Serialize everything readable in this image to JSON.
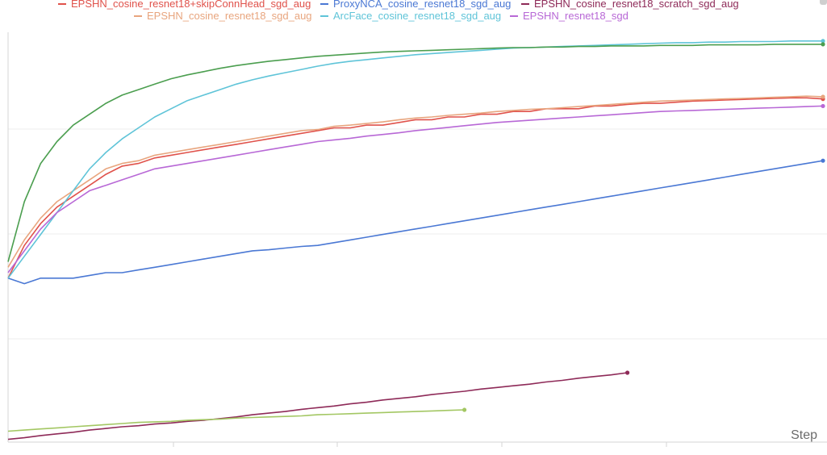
{
  "chart_data": {
    "type": "line",
    "x_axis_label": "Step",
    "grid": true,
    "legend_position": "top",
    "series": [
      {
        "name": "EPSHN_cosine_resnet18+skipConnHead_sgd_aug",
        "color": "#e0524b",
        "x": [
          0,
          5,
          10,
          15,
          20,
          25,
          30,
          35,
          40,
          45,
          50,
          55,
          60,
          65,
          70,
          75,
          80,
          85,
          90,
          95,
          100,
          105,
          110,
          115,
          120,
          125,
          130,
          135,
          140,
          145,
          150,
          155,
          160,
          165,
          170,
          175,
          180,
          185,
          190,
          195,
          200,
          205,
          210,
          215,
          220,
          225,
          230,
          235,
          240,
          245,
          250
        ],
        "y": [
          0.3,
          0.36,
          0.4,
          0.43,
          0.45,
          0.47,
          0.49,
          0.505,
          0.51,
          0.52,
          0.525,
          0.53,
          0.535,
          0.54,
          0.545,
          0.55,
          0.555,
          0.56,
          0.565,
          0.57,
          0.575,
          0.575,
          0.58,
          0.58,
          0.585,
          0.59,
          0.59,
          0.595,
          0.595,
          0.6,
          0.6,
          0.605,
          0.605,
          0.61,
          0.61,
          0.61,
          0.615,
          0.615,
          0.618,
          0.62,
          0.62,
          0.622,
          0.624,
          0.625,
          0.626,
          0.627,
          0.628,
          0.629,
          0.63,
          0.63,
          0.628
        ]
      },
      {
        "name": "ProxyNCA_cosine_resnet18_sgd_aug",
        "color": "#4a78d4",
        "x": [
          0,
          5,
          10,
          15,
          20,
          25,
          30,
          35,
          40,
          45,
          50,
          55,
          60,
          65,
          70,
          75,
          80,
          85,
          90,
          95,
          100,
          105,
          110,
          115,
          120,
          125,
          130,
          135,
          140,
          145,
          150,
          155,
          160,
          165,
          170,
          175,
          180,
          185,
          190,
          195,
          200,
          205,
          210,
          215,
          220,
          225,
          230,
          235,
          240,
          245,
          250
        ],
        "y": [
          0.3,
          0.29,
          0.3,
          0.3,
          0.3,
          0.305,
          0.31,
          0.31,
          0.315,
          0.32,
          0.325,
          0.33,
          0.335,
          0.34,
          0.345,
          0.35,
          0.352,
          0.355,
          0.358,
          0.36,
          0.365,
          0.37,
          0.375,
          0.38,
          0.385,
          0.39,
          0.395,
          0.4,
          0.405,
          0.41,
          0.415,
          0.42,
          0.425,
          0.43,
          0.435,
          0.44,
          0.445,
          0.45,
          0.455,
          0.46,
          0.465,
          0.47,
          0.475,
          0.48,
          0.485,
          0.49,
          0.495,
          0.5,
          0.505,
          0.51,
          0.515
        ]
      },
      {
        "name": "EPSHN_cosine_resnet18_scratch_sgd_aug",
        "color": "#8e2a58",
        "x": [
          0,
          5,
          10,
          15,
          20,
          25,
          30,
          35,
          40,
          45,
          50,
          55,
          60,
          65,
          70,
          75,
          80,
          85,
          90,
          95,
          100,
          105,
          110,
          115,
          120,
          125,
          130,
          135,
          140,
          145,
          150,
          155,
          160,
          165,
          170,
          175,
          180,
          185,
          190
        ],
        "y": [
          0.005,
          0.008,
          0.012,
          0.015,
          0.018,
          0.022,
          0.025,
          0.028,
          0.03,
          0.033,
          0.035,
          0.038,
          0.04,
          0.043,
          0.046,
          0.05,
          0.053,
          0.056,
          0.06,
          0.063,
          0.066,
          0.07,
          0.073,
          0.077,
          0.08,
          0.083,
          0.087,
          0.09,
          0.093,
          0.097,
          0.1,
          0.103,
          0.106,
          0.11,
          0.113,
          0.117,
          0.12,
          0.123,
          0.127
        ]
      },
      {
        "name": "EPSHN_cosine_resnet18_sgd_aug",
        "color": "#e8a57e",
        "x": [
          0,
          5,
          10,
          15,
          20,
          25,
          30,
          35,
          40,
          45,
          50,
          55,
          60,
          65,
          70,
          75,
          80,
          85,
          90,
          95,
          100,
          105,
          110,
          115,
          120,
          125,
          130,
          135,
          140,
          145,
          150,
          155,
          160,
          165,
          170,
          175,
          180,
          185,
          190,
          195,
          200,
          205,
          210,
          215,
          220,
          225,
          230,
          235,
          240,
          245,
          250
        ],
        "y": [
          0.32,
          0.37,
          0.41,
          0.44,
          0.46,
          0.48,
          0.5,
          0.51,
          0.515,
          0.525,
          0.53,
          0.535,
          0.54,
          0.545,
          0.55,
          0.555,
          0.56,
          0.565,
          0.57,
          0.572,
          0.578,
          0.58,
          0.583,
          0.586,
          0.59,
          0.593,
          0.595,
          0.598,
          0.6,
          0.602,
          0.605,
          0.607,
          0.609,
          0.61,
          0.612,
          0.614,
          0.616,
          0.618,
          0.62,
          0.622,
          0.624,
          0.625,
          0.626,
          0.627,
          0.628,
          0.629,
          0.63,
          0.631,
          0.632,
          0.633,
          0.632
        ]
      },
      {
        "name": "ArcFace_cosine_resnet18_sgd_aug",
        "color": "#5fc4d8",
        "x": [
          0,
          5,
          10,
          15,
          20,
          25,
          30,
          35,
          40,
          45,
          50,
          55,
          60,
          65,
          70,
          75,
          80,
          85,
          90,
          95,
          100,
          105,
          110,
          115,
          120,
          125,
          130,
          135,
          140,
          145,
          150,
          155,
          160,
          165,
          170,
          175,
          180,
          185,
          190,
          195,
          200,
          205,
          210,
          215,
          220,
          225,
          230,
          235,
          240,
          245,
          250
        ],
        "y": [
          0.3,
          0.34,
          0.38,
          0.42,
          0.46,
          0.5,
          0.53,
          0.555,
          0.575,
          0.595,
          0.61,
          0.625,
          0.635,
          0.645,
          0.655,
          0.663,
          0.67,
          0.676,
          0.682,
          0.688,
          0.693,
          0.697,
          0.7,
          0.703,
          0.706,
          0.709,
          0.711,
          0.713,
          0.715,
          0.717,
          0.719,
          0.721,
          0.722,
          0.723,
          0.724,
          0.725,
          0.726,
          0.727,
          0.728,
          0.729,
          0.73,
          0.731,
          0.731,
          0.732,
          0.732,
          0.733,
          0.733,
          0.733,
          0.734,
          0.734,
          0.734
        ]
      },
      {
        "name": "EPSHN_resnet18_sgd",
        "color": "#b868d6",
        "x": [
          0,
          5,
          10,
          15,
          20,
          25,
          30,
          35,
          40,
          45,
          50,
          55,
          60,
          65,
          70,
          75,
          80,
          85,
          90,
          95,
          100,
          105,
          110,
          115,
          120,
          125,
          130,
          135,
          140,
          145,
          150,
          155,
          160,
          165,
          170,
          175,
          180,
          185,
          190,
          195,
          200,
          205,
          210,
          215,
          220,
          225,
          230,
          235,
          240,
          245,
          250
        ],
        "y": [
          0.31,
          0.35,
          0.39,
          0.42,
          0.44,
          0.46,
          0.47,
          0.48,
          0.49,
          0.5,
          0.505,
          0.51,
          0.515,
          0.52,
          0.525,
          0.53,
          0.535,
          0.54,
          0.545,
          0.55,
          0.553,
          0.556,
          0.56,
          0.563,
          0.566,
          0.57,
          0.573,
          0.576,
          0.579,
          0.582,
          0.585,
          0.587,
          0.589,
          0.591,
          0.593,
          0.595,
          0.597,
          0.599,
          0.601,
          0.603,
          0.605,
          0.606,
          0.607,
          0.608,
          0.609,
          0.61,
          0.611,
          0.612,
          0.613,
          0.614,
          0.615
        ]
      },
      {
        "name": "",
        "color": "#4b9e4f",
        "x": [
          0,
          5,
          10,
          15,
          20,
          25,
          30,
          35,
          40,
          45,
          50,
          55,
          60,
          65,
          70,
          75,
          80,
          85,
          90,
          95,
          100,
          105,
          110,
          115,
          120,
          125,
          130,
          135,
          140,
          145,
          150,
          155,
          160,
          165,
          170,
          175,
          180,
          185,
          190,
          195,
          200,
          205,
          210,
          215,
          220,
          225,
          230,
          235,
          240,
          245,
          250
        ],
        "y": [
          0.33,
          0.44,
          0.51,
          0.55,
          0.58,
          0.6,
          0.62,
          0.635,
          0.645,
          0.655,
          0.665,
          0.672,
          0.678,
          0.684,
          0.689,
          0.693,
          0.697,
          0.7,
          0.703,
          0.706,
          0.708,
          0.71,
          0.712,
          0.714,
          0.715,
          0.716,
          0.717,
          0.718,
          0.719,
          0.72,
          0.721,
          0.722,
          0.722,
          0.723,
          0.723,
          0.724,
          0.724,
          0.725,
          0.725,
          0.725,
          0.726,
          0.726,
          0.726,
          0.727,
          0.727,
          0.727,
          0.727,
          0.728,
          0.728,
          0.728,
          0.728
        ]
      },
      {
        "name": "",
        "color": "#a3c763",
        "x": [
          0,
          5,
          10,
          15,
          20,
          25,
          30,
          35,
          40,
          45,
          50,
          55,
          60,
          65,
          70,
          75,
          80,
          85,
          90,
          95,
          100,
          105,
          110,
          115,
          120,
          125,
          130,
          135,
          140
        ],
        "y": [
          0.02,
          0.022,
          0.024,
          0.026,
          0.028,
          0.03,
          0.032,
          0.034,
          0.036,
          0.037,
          0.038,
          0.04,
          0.041,
          0.042,
          0.044,
          0.045,
          0.046,
          0.047,
          0.048,
          0.05,
          0.051,
          0.052,
          0.053,
          0.054,
          0.055,
          0.056,
          0.057,
          0.058,
          0.059
        ]
      }
    ],
    "x_range": [
      0,
      250
    ],
    "y_range": [
      0,
      0.75
    ]
  }
}
